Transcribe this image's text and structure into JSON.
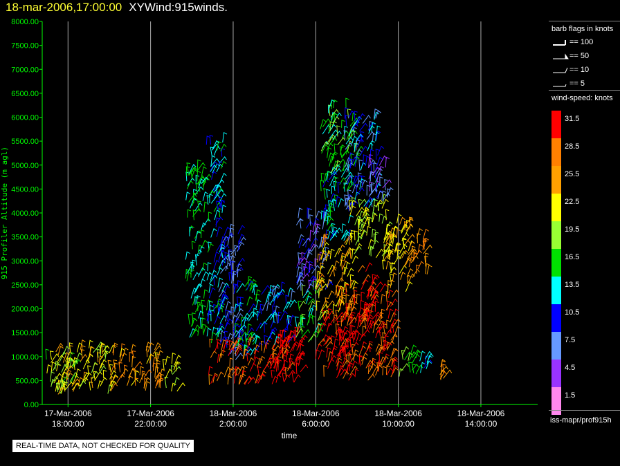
{
  "header": {
    "timestamp": "18-mar-2006,17:00:00",
    "product": "XYWind:915winds."
  },
  "chart_data": {
    "type": "scatter",
    "ylabel": "915 Profiler Altitude (m agl)",
    "xlabel": "time",
    "ylim": [
      0,
      8000
    ],
    "xlim_hours": [
      -7.25,
      16.75
    ],
    "y_ticks": [
      "0.00",
      "500.00",
      "1000.00",
      "1500.00",
      "2000.00",
      "2500.00",
      "3000.00",
      "3500.00",
      "4000.00",
      "4500.00",
      "5000.00",
      "5500.00",
      "6000.00",
      "6500.00",
      "7000.00",
      "7500.00",
      "8000.00"
    ],
    "x_ticks": [
      {
        "h": -6,
        "date": "17-Mar-2006",
        "time": "18:00:00"
      },
      {
        "h": -2,
        "date": "17-Mar-2006",
        "time": "22:00:00"
      },
      {
        "h": 2,
        "date": "18-Mar-2006",
        "time": "2:00:00"
      },
      {
        "h": 6,
        "date": "18-Mar-2006",
        "time": "6:00:00"
      },
      {
        "h": 10,
        "date": "18-Mar-2006",
        "time": "10:00:00"
      },
      {
        "h": 14,
        "date": "18-Mar-2006",
        "time": "14:00:00"
      }
    ],
    "grid": "vertical",
    "series": [
      {
        "h0": -7.2,
        "h1": -5.6,
        "y0": 200,
        "y1": 1050,
        "speed": 20
      },
      {
        "h0": -6.6,
        "h1": -3.9,
        "y0": 200,
        "y1": 1200,
        "speed": 23
      },
      {
        "h0": -4.0,
        "h1": -1.5,
        "y0": 250,
        "y1": 1150,
        "speed": 26
      },
      {
        "h0": -1.4,
        "h1": -0.7,
        "y0": 250,
        "y1": 900,
        "speed": 22
      },
      {
        "h0": -0.3,
        "h1": 0.6,
        "y0": 1300,
        "y1": 4900,
        "speed": 15
      },
      {
        "h0": 0.7,
        "h1": 1.5,
        "y0": 1200,
        "y1": 5500,
        "speed": 13
      },
      {
        "h0": 1.3,
        "h1": 2.3,
        "y0": 900,
        "y1": 3600,
        "speed": 9
      },
      {
        "h0": 0.8,
        "h1": 2.0,
        "y0": 400,
        "y1": 1200,
        "speed": 28
      },
      {
        "h0": 2.0,
        "h1": 3.2,
        "y0": 1000,
        "y1": 2500,
        "speed": 14
      },
      {
        "h0": 2.0,
        "h1": 4.8,
        "y0": 400,
        "y1": 1300,
        "speed": 30
      },
      {
        "h0": 3.8,
        "h1": 5.3,
        "y0": 400,
        "y1": 1500,
        "speed": 33
      },
      {
        "h0": 3.3,
        "h1": 4.8,
        "y0": 1200,
        "y1": 2400,
        "speed": 11
      },
      {
        "h0": 5.0,
        "h1": 6.2,
        "y0": 1300,
        "y1": 2400,
        "speed": 17
      },
      {
        "h0": 5.0,
        "h1": 6.5,
        "y0": 2300,
        "y1": 3900,
        "speed": 8
      },
      {
        "h0": 6.0,
        "h1": 7.8,
        "y0": 500,
        "y1": 1800,
        "speed": 32
      },
      {
        "h0": 7.0,
        "h1": 9.8,
        "y0": 500,
        "y1": 2300,
        "speed": 30
      },
      {
        "h0": 6.0,
        "h1": 7.8,
        "y0": 1800,
        "y1": 3400,
        "speed": 25
      },
      {
        "h0": 6.2,
        "h1": 7.6,
        "y0": 3400,
        "y1": 4800,
        "speed": 14
      },
      {
        "h0": 6.2,
        "h1": 8.0,
        "y0": 4800,
        "y1": 6200,
        "speed": 17
      },
      {
        "h0": 7.4,
        "h1": 9.0,
        "y0": 4000,
        "y1": 6000,
        "speed": 10
      },
      {
        "h0": 7.6,
        "h1": 9.6,
        "y0": 3000,
        "y1": 4200,
        "speed": 21
      },
      {
        "h0": 9.2,
        "h1": 10.6,
        "y0": 2300,
        "y1": 3800,
        "speed": 24
      },
      {
        "h0": 10.4,
        "h1": 11.4,
        "y0": 2500,
        "y1": 3500,
        "speed": 27
      },
      {
        "h0": 8.4,
        "h1": 9.6,
        "y0": 4200,
        "y1": 5000,
        "speed": 6
      },
      {
        "h0": 8.0,
        "h1": 9.2,
        "y0": 1500,
        "y1": 2800,
        "speed": 31
      },
      {
        "h0": 10.0,
        "h1": 10.9,
        "y0": 500,
        "y1": 1100,
        "speed": 17
      },
      {
        "h0": 11.0,
        "h1": 11.4,
        "y0": 500,
        "y1": 1000,
        "speed": 12
      },
      {
        "h0": 12.0,
        "h1": 12.2,
        "y0": 500,
        "y1": 800,
        "speed": 27
      }
    ]
  },
  "legend": {
    "barb_title": "barb flags in knots",
    "barbs": [
      "== 100",
      "== 50",
      "== 10",
      "== 5"
    ],
    "speed_title": "wind-speed: knots",
    "scale": [
      {
        "label": "31.5",
        "color": "#ff0000"
      },
      {
        "label": "28.5",
        "color": "#ff8000"
      },
      {
        "label": "25.5",
        "color": "#ffa000"
      },
      {
        "label": "22.5",
        "color": "#ffff00"
      },
      {
        "label": "19.5",
        "color": "#99ff33"
      },
      {
        "label": "16.5",
        "color": "#00e000"
      },
      {
        "label": "13.5",
        "color": "#00ffff"
      },
      {
        "label": "10.5",
        "color": "#0000ff"
      },
      {
        "label": "7.5",
        "color": "#6699ff"
      },
      {
        "label": "4.5",
        "color": "#9933ff"
      },
      {
        "label": "1.5",
        "color": "#ff88ee"
      }
    ],
    "source": "iss-mapr/prof915h"
  },
  "colors": {
    "axis": "#00ff00",
    "grid": "#aaaaaa",
    "tick_label": "#00ff00",
    "x_label": "#ffffff"
  },
  "disclaimer": "REAL-TIME DATA, NOT CHECKED FOR QUALITY"
}
